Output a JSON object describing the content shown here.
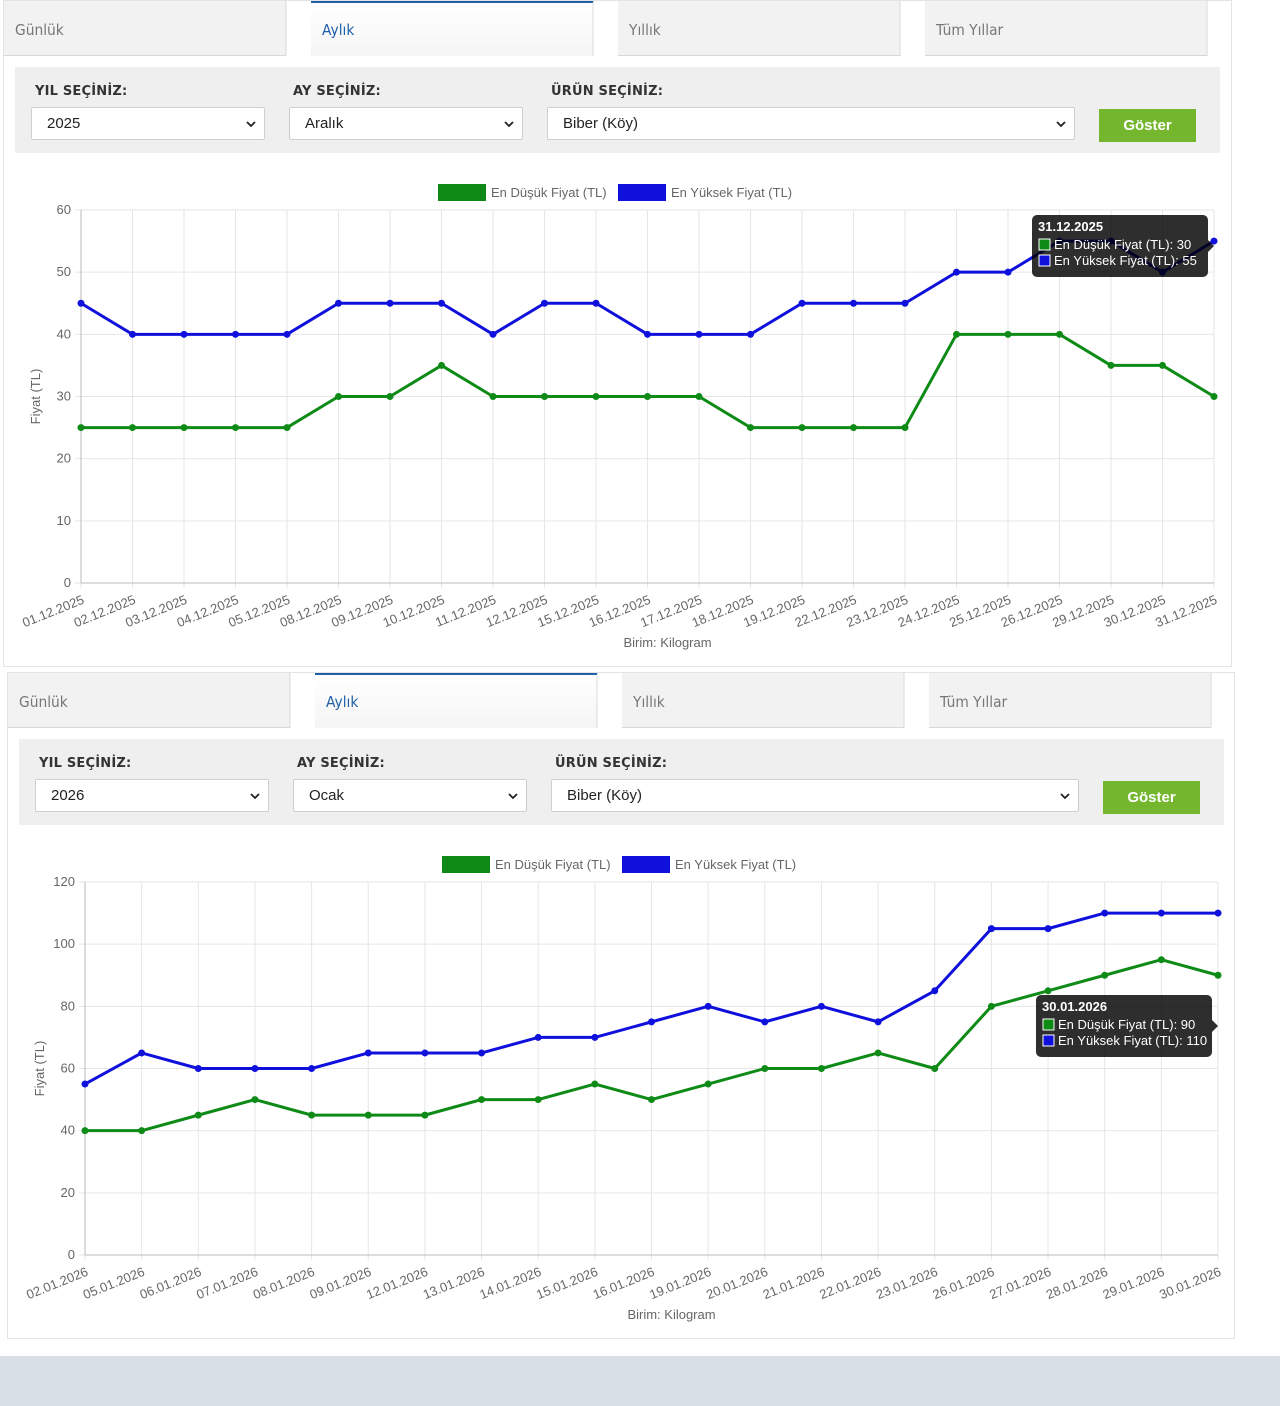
{
  "panels": [
    {
      "tabs": [
        {
          "label": "Günlük",
          "active": false
        },
        {
          "label": "Aylık",
          "active": true
        },
        {
          "label": "Yıllık",
          "active": false
        },
        {
          "label": "Tüm Yıllar",
          "active": false
        }
      ],
      "filters": {
        "year_label": "YIL SEÇİNİZ:",
        "year_value": "2025",
        "month_label": "AY SEÇİNİZ:",
        "month_value": "Aralık",
        "product_label": "ÜRÜN SEÇİNİZ:",
        "product_value": "Biber (Köy)",
        "button_label": "Göster"
      },
      "chart_data": {
        "type": "line",
        "ylabel": "Fiyat (TL)",
        "xlabel": "Birim: Kilogram",
        "ylim": [
          0,
          60
        ],
        "yticks": [
          0,
          10,
          20,
          30,
          40,
          50,
          60
        ],
        "grid": true,
        "legend": "top",
        "categories": [
          "01.12.2025",
          "02.12.2025",
          "03.12.2025",
          "04.12.2025",
          "05.12.2025",
          "08.12.2025",
          "09.12.2025",
          "10.12.2025",
          "11.12.2025",
          "12.12.2025",
          "15.12.2025",
          "16.12.2025",
          "17.12.2025",
          "18.12.2025",
          "19.12.2025",
          "22.12.2025",
          "23.12.2025",
          "24.12.2025",
          "25.12.2025",
          "26.12.2025",
          "29.12.2025",
          "30.12.2025",
          "31.12.2025"
        ],
        "series": [
          {
            "name": "En Düşük Fiyat (TL)",
            "color": "#0e8a16",
            "values": [
              25,
              25,
              25,
              25,
              25,
              30,
              30,
              35,
              30,
              30,
              30,
              30,
              30,
              25,
              25,
              25,
              25,
              40,
              40,
              40,
              35,
              35,
              30
            ]
          },
          {
            "name": "En Yüksek Fiyat (TL)",
            "color": "#1010dd",
            "values": [
              45,
              40,
              40,
              40,
              40,
              45,
              45,
              45,
              40,
              45,
              45,
              40,
              40,
              40,
              45,
              45,
              45,
              50,
              50,
              55,
              55,
              50,
              55
            ]
          }
        ],
        "tooltip": {
          "title": "31.12.2025",
          "index": 22,
          "lines": [
            "En Düşük Fiyat (TL): 30",
            "En Yüksek Fiyat (TL): 55"
          ]
        }
      }
    },
    {
      "tabs": [
        {
          "label": "Günlük",
          "active": false
        },
        {
          "label": "Aylık",
          "active": true
        },
        {
          "label": "Yıllık",
          "active": false
        },
        {
          "label": "Tüm Yıllar",
          "active": false
        }
      ],
      "filters": {
        "year_label": "YIL SEÇİNİZ:",
        "year_value": "2026",
        "month_label": "AY SEÇİNİZ:",
        "month_value": "Ocak",
        "product_label": "ÜRÜN SEÇİNİZ:",
        "product_value": "Biber (Köy)",
        "button_label": "Göster"
      },
      "chart_data": {
        "type": "line",
        "ylabel": "Fiyat (TL)",
        "xlabel": "Birim: Kilogram",
        "ylim": [
          0,
          120
        ],
        "yticks": [
          0,
          20,
          40,
          60,
          80,
          100,
          120
        ],
        "grid": true,
        "legend": "top",
        "categories": [
          "02.01.2026",
          "05.01.2026",
          "06.01.2026",
          "07.01.2026",
          "08.01.2026",
          "09.01.2026",
          "12.01.2026",
          "13.01.2026",
          "14.01.2026",
          "15.01.2026",
          "16.01.2026",
          "19.01.2026",
          "20.01.2026",
          "21.01.2026",
          "22.01.2026",
          "23.01.2026",
          "26.01.2026",
          "27.01.2026",
          "28.01.2026",
          "29.01.2026",
          "30.01.2026"
        ],
        "series": [
          {
            "name": "En Düşük Fiyat (TL)",
            "color": "#0e8a16",
            "values": [
              40,
              40,
              45,
              50,
              45,
              45,
              45,
              50,
              50,
              55,
              50,
              55,
              60,
              60,
              65,
              60,
              80,
              85,
              90,
              95,
              90
            ]
          },
          {
            "name": "En Yüksek Fiyat (TL)",
            "color": "#1010dd",
            "values": [
              55,
              65,
              60,
              60,
              60,
              65,
              65,
              65,
              70,
              70,
              75,
              80,
              75,
              80,
              75,
              85,
              105,
              105,
              110,
              110,
              110
            ]
          }
        ],
        "tooltip": {
          "title": "30.01.2026",
          "index": 20,
          "lines": [
            "En Düşük Fiyat (TL): 90",
            "En Yüksek Fiyat (TL): 110"
          ]
        }
      }
    }
  ]
}
